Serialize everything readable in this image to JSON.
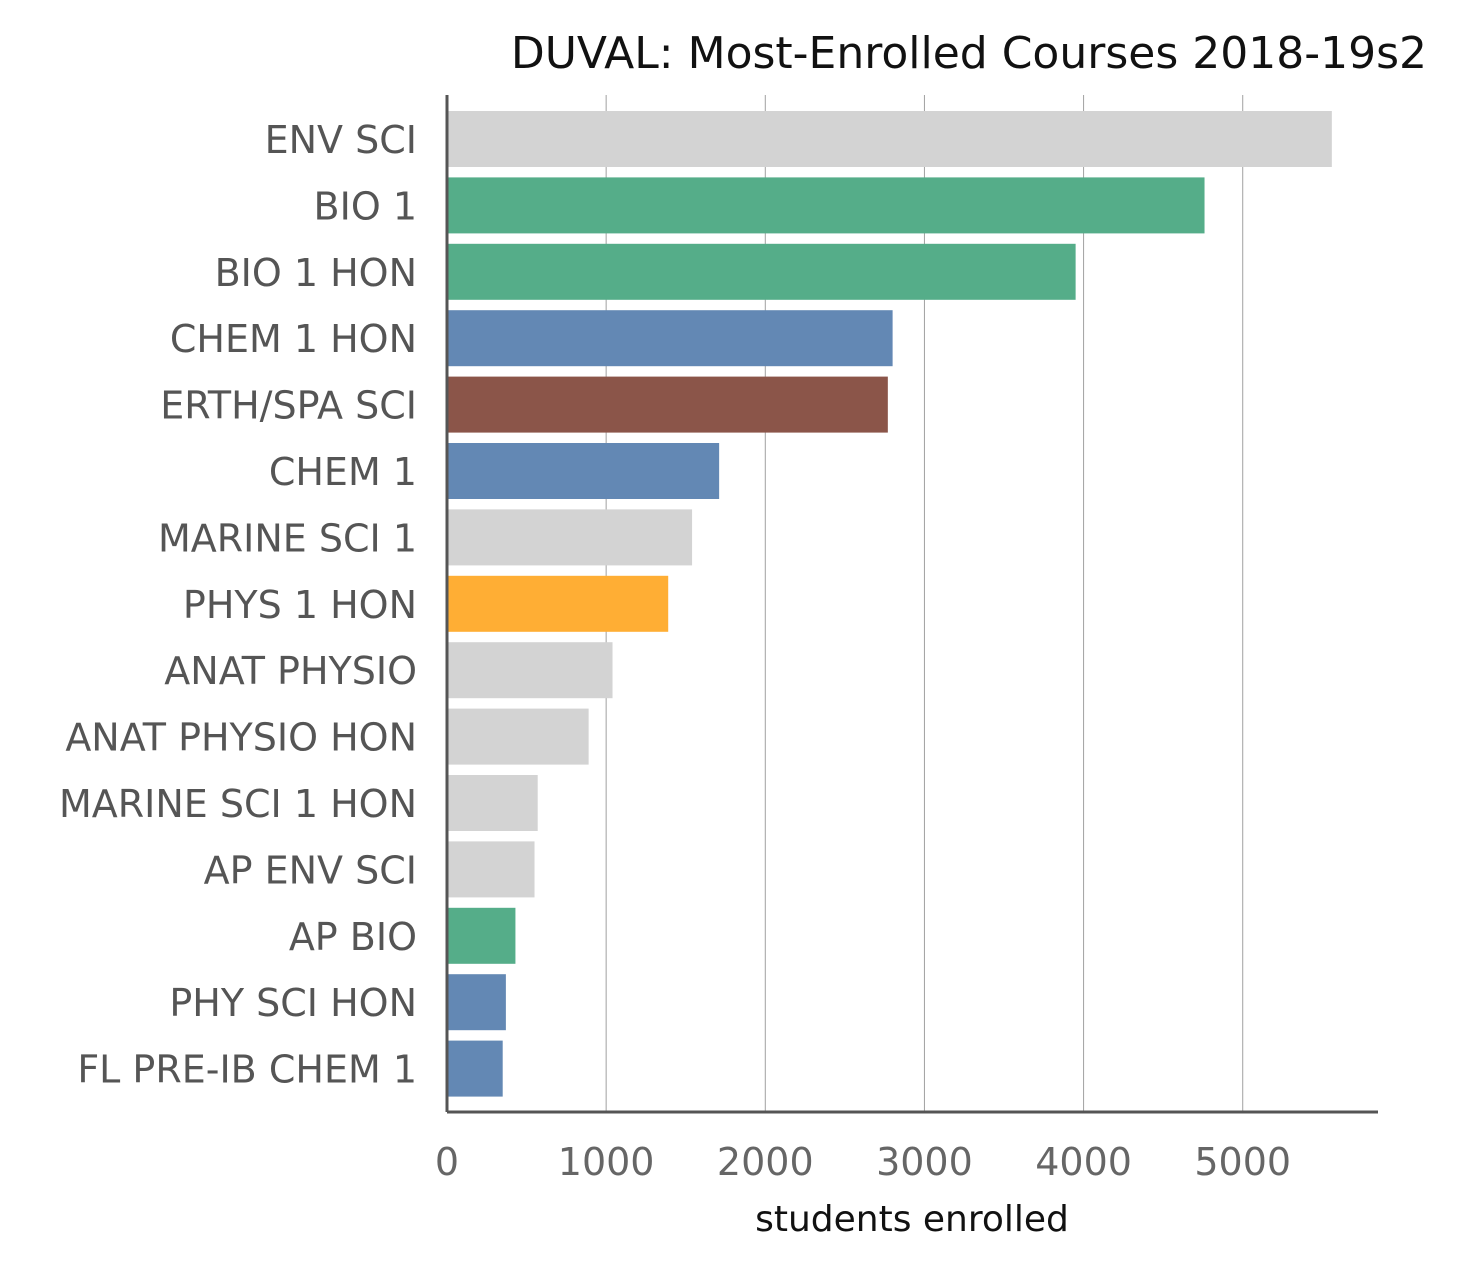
{
  "chart_data": {
    "type": "bar",
    "orientation": "horizontal",
    "title": "DUVAL: Most-Enrolled Courses 2018-19s2",
    "xlabel": "students enrolled",
    "ylabel": "",
    "xlim": [
      0,
      5850
    ],
    "xticks": [
      0,
      1000,
      2000,
      3000,
      4000,
      5000
    ],
    "grid": "vertical",
    "categories": [
      "ENV SCI",
      "BIO 1",
      "BIO 1 HON",
      "CHEM 1 HON",
      "ERTH/SPA SCI",
      "CHEM 1",
      "MARINE SCI 1",
      "PHYS 1 HON",
      "ANAT PHYSIO",
      "ANAT PHYSIO HON",
      "MARINE SCI 1 HON",
      "AP ENV SCI",
      "AP BIO",
      "PHY SCI HON",
      "FL PRE-IB CHEM 1"
    ],
    "values": [
      5560,
      4760,
      3950,
      2800,
      2770,
      1710,
      1540,
      1390,
      1040,
      890,
      570,
      550,
      430,
      370,
      350
    ],
    "colors": [
      "#d3d3d3",
      "#55ad89",
      "#55ad89",
      "#6388b4",
      "#8b5549",
      "#6388b4",
      "#d3d3d3",
      "#ffae34",
      "#d3d3d3",
      "#d3d3d3",
      "#d3d3d3",
      "#d3d3d3",
      "#55ad89",
      "#6388b4",
      "#6388b4"
    ]
  }
}
